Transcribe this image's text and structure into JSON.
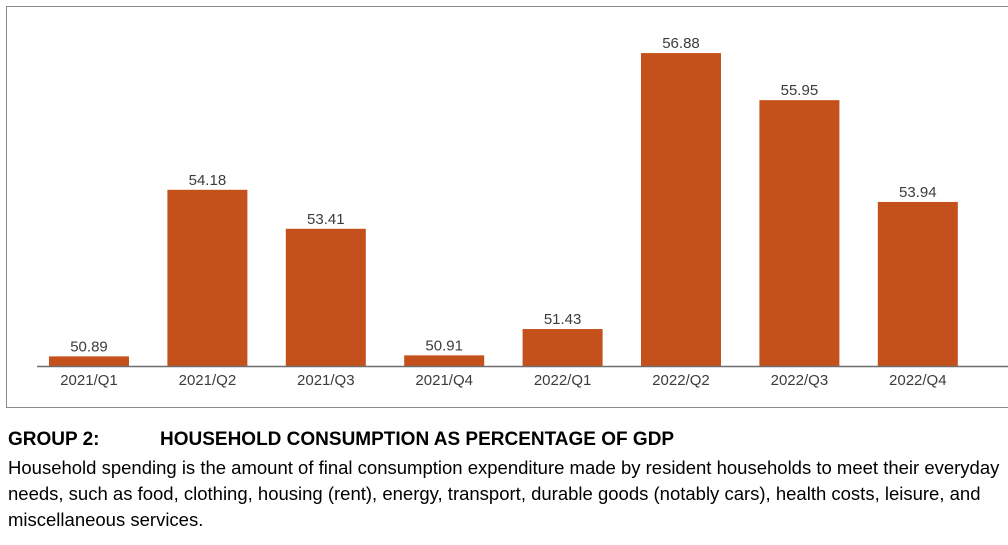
{
  "chart_data": {
    "type": "bar",
    "title": "",
    "xlabel": "",
    "ylabel": "",
    "categories": [
      "2021/Q1",
      "2021/Q2",
      "2021/Q3",
      "2021/Q4",
      "2022/Q1",
      "2022/Q2",
      "2022/Q3",
      "2022/Q4"
    ],
    "values": [
      50.89,
      54.18,
      53.41,
      50.91,
      51.43,
      56.88,
      55.95,
      53.94
    ],
    "value_labels": [
      "50.89",
      "54.18",
      "53.41",
      "50.91",
      "51.43",
      "56.88",
      "55.95",
      "53.94"
    ],
    "ylim": [
      50.7,
      57.0
    ],
    "grid": false,
    "bar_color": "#c4501c"
  },
  "caption": {
    "group_label": "GROUP 2:",
    "title": "HOUSEHOLD CONSUMPTION AS PERCENTAGE OF GDP",
    "body": "Household spending is the amount of final consumption expenditure made by resident households to meet their everyday needs, such as food, clothing, housing (rent), energy, transport, durable goods (notably cars), health costs, leisure, and miscellaneous services."
  }
}
